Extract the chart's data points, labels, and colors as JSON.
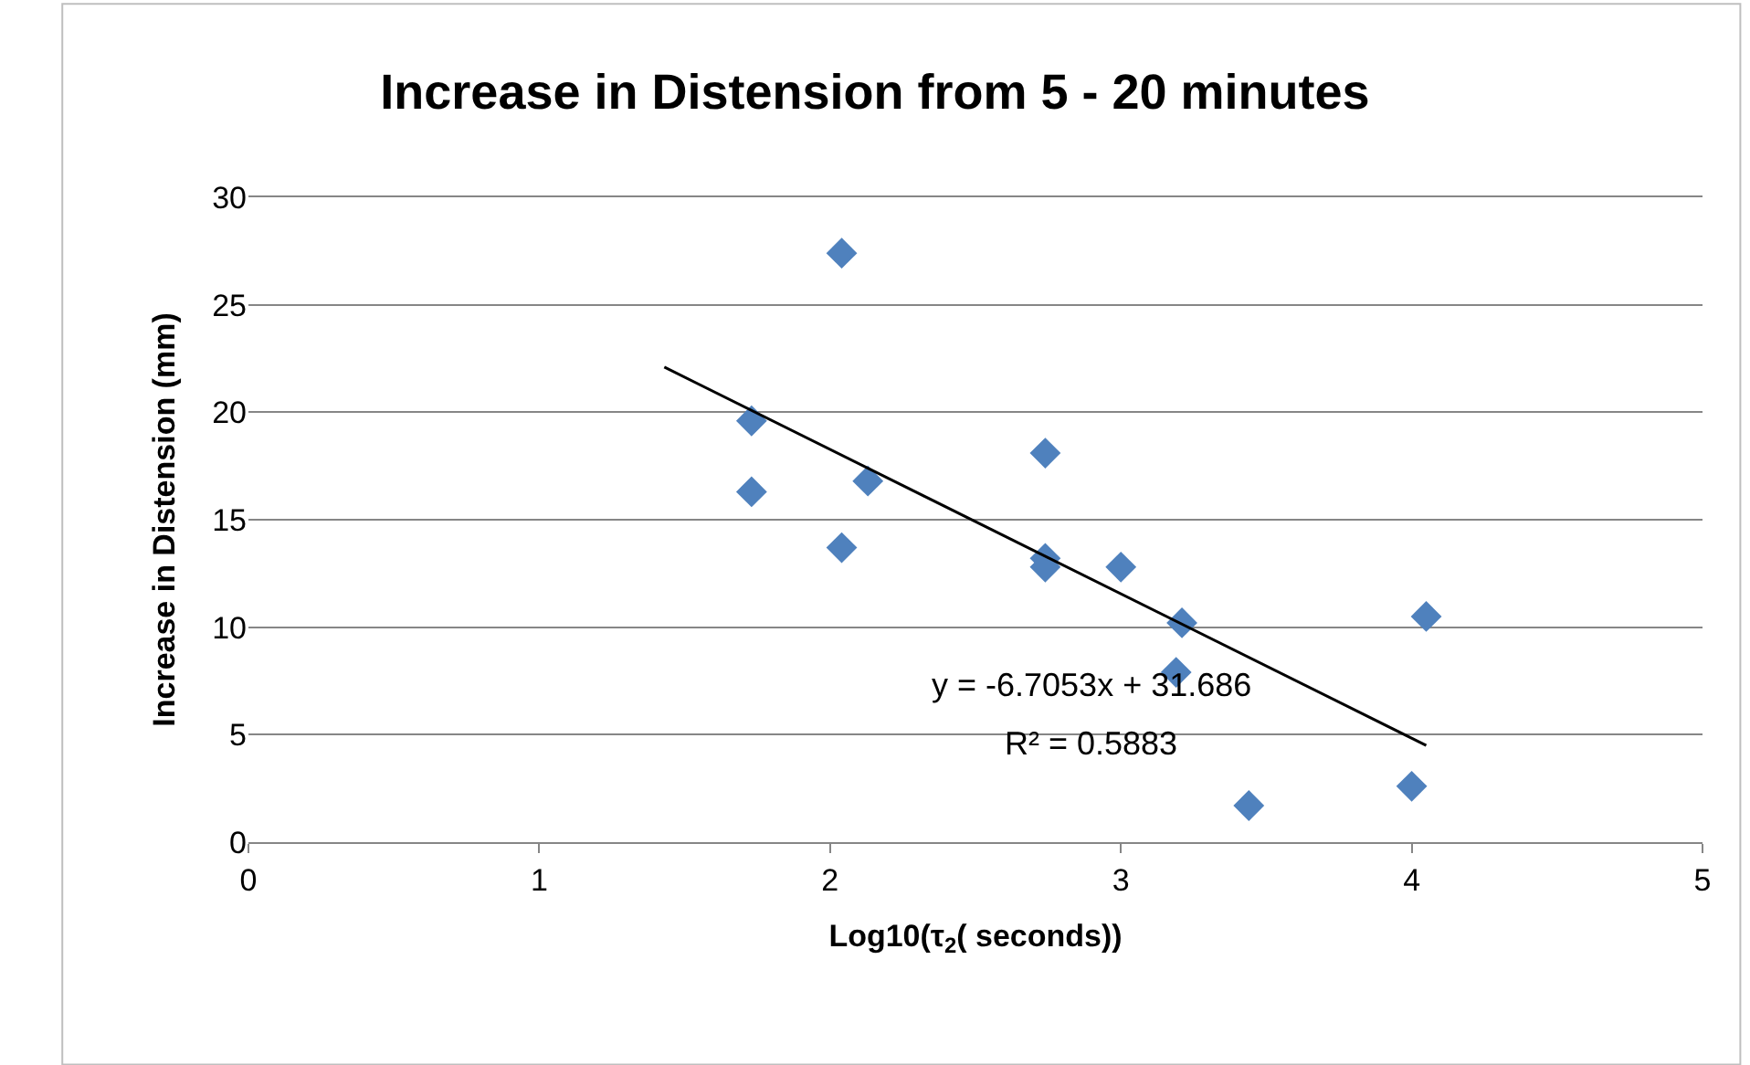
{
  "chart_data": {
    "type": "scatter",
    "title": "Increase in Distension from 5 - 20 minutes",
    "xlabel": "Log10(τ$_{2}$( seconds))",
    "ylabel": "Increase in Distension (mm)",
    "series": [
      {
        "color": "#4f81bd",
        "marker": "diamond",
        "x": [
          1.73,
          1.73,
          2.04,
          2.04,
          2.13,
          2.74,
          2.74,
          2.74,
          3.0,
          3.21,
          3.19,
          3.44,
          4.0,
          4.05
        ],
        "values": [
          19.6,
          16.3,
          27.4,
          13.7,
          16.8,
          18.1,
          13.2,
          12.8,
          12.8,
          10.2,
          7.9,
          1.7,
          2.6,
          10.5
        ]
      },
      {
        "type": "line",
        "color": "#000000",
        "marker": "none",
        "x": [
          1.43,
          4.05
        ],
        "values": [
          22.1,
          4.5
        ]
      }
    ],
    "annotations": [
      "y = -6.7053x + 31.686",
      "R² = 0.5883"
    ],
    "xlim": [
      0,
      5
    ],
    "xticks": [
      0,
      1,
      2,
      3,
      4,
      5
    ],
    "ylim": [
      0,
      30
    ],
    "yticks": [
      0,
      5,
      10,
      15,
      20,
      25,
      30
    ],
    "grid": "y"
  }
}
